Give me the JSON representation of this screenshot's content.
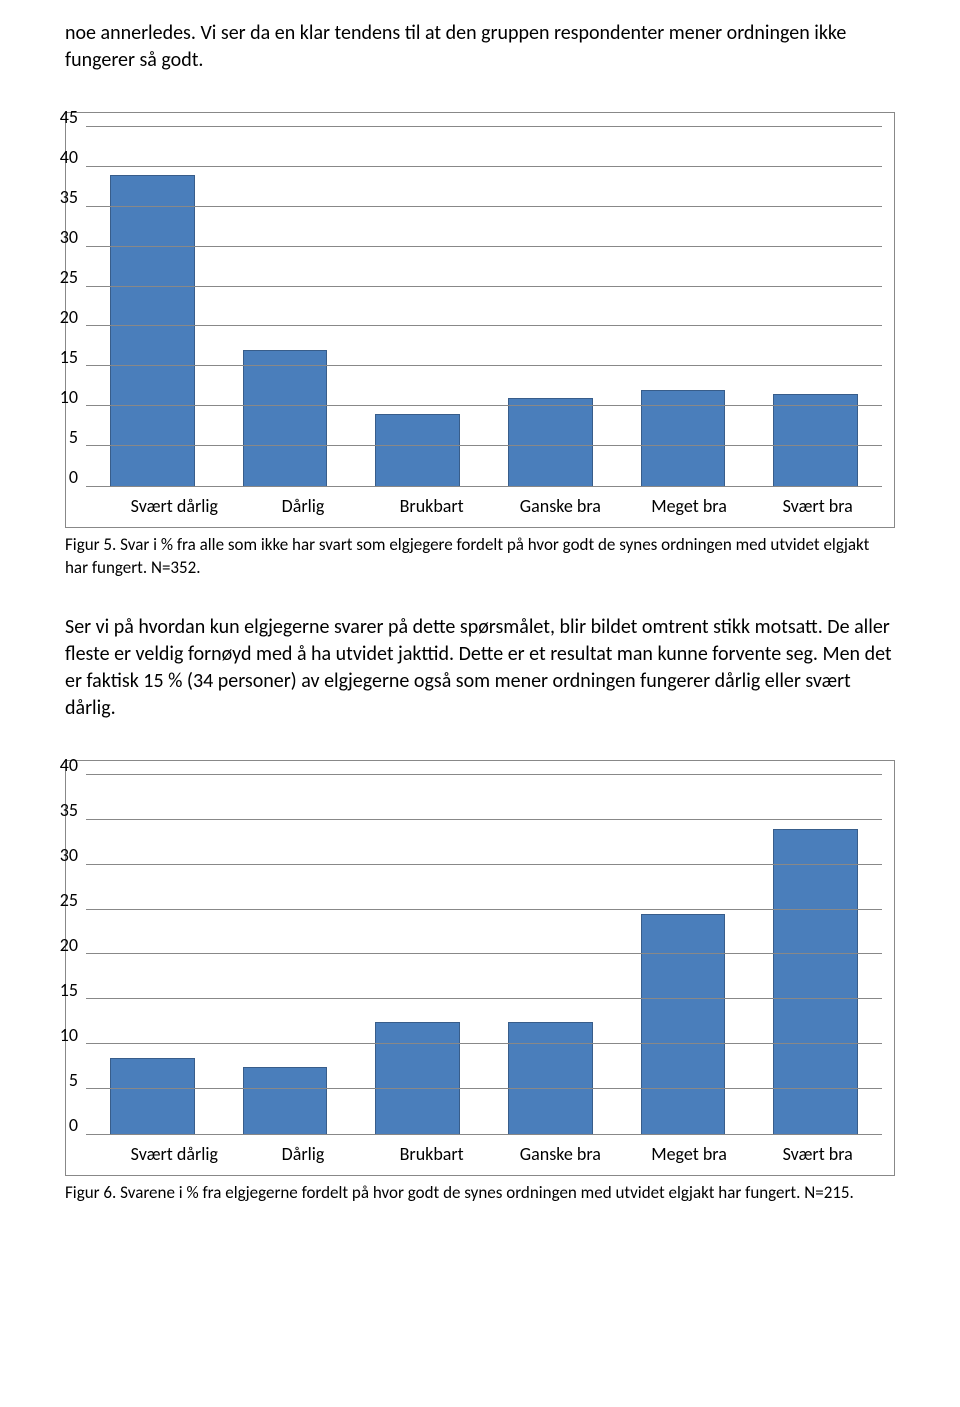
{
  "intro_paragraph": "noe annerledes. Vi ser da en klar tendens til at den gruppen respondenter mener ordningen ikke fungerer så godt.",
  "chart1": {
    "type": "bar",
    "categories": [
      "Svært dårlig",
      "Dårlig",
      "Brukbart",
      "Ganske bra",
      "Meget bra",
      "Svært bra"
    ],
    "values": [
      39,
      17,
      9,
      11,
      12,
      11.5
    ],
    "ymax": 45,
    "ytick_step": 5,
    "bar_color": "#4a7ebb",
    "bar_border": "#385d8a",
    "grid_color": "#888888",
    "background_color": "#ffffff",
    "label_fontsize": 18
  },
  "caption1": "Figur 5. Svar i % fra alle som ikke har svart som elgjegere fordelt på hvor godt de synes ordningen med utvidet elgjakt har fungert. N=352.",
  "middle_paragraph": "Ser vi på hvordan kun elgjegerne svarer på dette spørsmålet, blir bildet omtrent stikk motsatt. De aller fleste er veldig fornøyd med å ha utvidet jakttid. Dette er et resultat man kunne forvente seg. Men det er faktisk 15 % (34 personer) av elgjegerne også som mener ordningen fungerer dårlig eller svært dårlig.",
  "chart2": {
    "type": "bar",
    "categories": [
      "Svært dårlig",
      "Dårlig",
      "Brukbart",
      "Ganske bra",
      "Meget bra",
      "Svært bra"
    ],
    "values": [
      8.5,
      7.5,
      12.5,
      12.5,
      24.5,
      34
    ],
    "ymax": 40,
    "ytick_step": 5,
    "bar_color": "#4a7ebb",
    "bar_border": "#385d8a",
    "grid_color": "#888888",
    "background_color": "#ffffff",
    "label_fontsize": 18
  },
  "caption2": "Figur 6. Svarene i % fra elgjegerne fordelt på hvor godt de synes ordningen med utvidet elgjakt har fungert. N=215."
}
